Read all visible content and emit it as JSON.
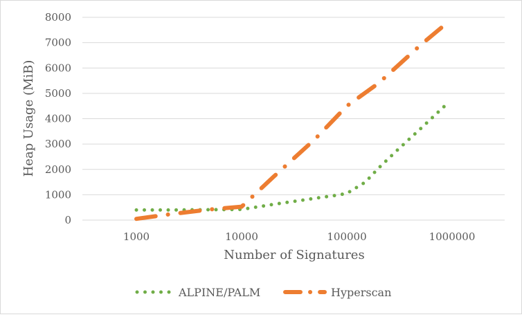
{
  "chart_data": {
    "type": "line",
    "title": "",
    "xlabel": "Number of Signatures",
    "ylabel": "Heap Usage (MiB)",
    "x_scale": "log",
    "xlim": [
      1000,
      1000000
    ],
    "ylim": [
      0,
      8000
    ],
    "grid": {
      "horizontal": true,
      "vertical": false
    },
    "legend_position": "bottom",
    "x_tick_labels": [
      "1000",
      "10000",
      "100000",
      "1000000"
    ],
    "y_tick_labels": [
      "0",
      "1000",
      "2000",
      "3000",
      "4000",
      "5000",
      "6000",
      "7000",
      "8000"
    ],
    "series": [
      {
        "name": "ALPINE/PALM",
        "color": "#70ad47",
        "line_style": "round-dot",
        "points": [
          [
            1000,
            400
          ],
          [
            2000,
            400
          ],
          [
            5000,
            410
          ],
          [
            10000,
            420
          ],
          [
            20000,
            620
          ],
          [
            50000,
            860
          ],
          [
            80000,
            980
          ],
          [
            100000,
            1050
          ],
          [
            150000,
            1500
          ],
          [
            200000,
            2050
          ],
          [
            300000,
            2750
          ],
          [
            500000,
            3600
          ],
          [
            850000,
            4500
          ]
        ]
      },
      {
        "name": "Hyperscan",
        "color": "#ed7d31",
        "line_style": "long-dash-dot",
        "points": [
          [
            1000,
            50
          ],
          [
            2000,
            220
          ],
          [
            5000,
            420
          ],
          [
            10000,
            530
          ],
          [
            20000,
            1700
          ],
          [
            50000,
            3200
          ],
          [
            100000,
            4500
          ],
          [
            200000,
            5400
          ],
          [
            500000,
            6900
          ],
          [
            850000,
            7700
          ]
        ]
      }
    ]
  }
}
